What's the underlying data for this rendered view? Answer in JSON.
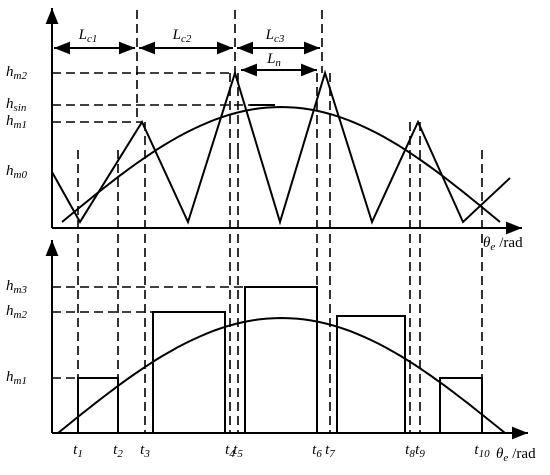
{
  "top_panel": {
    "dimensions": [
      {
        "main": "L",
        "sub": "c1"
      },
      {
        "main": "L",
        "sub": "c2"
      },
      {
        "main": "L",
        "sub": "c3"
      },
      {
        "main": "L",
        "sub": "n"
      }
    ],
    "y_labels": [
      {
        "main": "h",
        "sub": "m2"
      },
      {
        "main": "h",
        "sub": "sin"
      },
      {
        "main": "h",
        "sub": "m1"
      },
      {
        "main": "h",
        "sub": "m0"
      }
    ],
    "axis_label": {
      "main": "θ",
      "sub": "e",
      "unit": "/rad"
    }
  },
  "bottom_panel": {
    "y_labels": [
      {
        "main": "h",
        "sub": "m3"
      },
      {
        "main": "h",
        "sub": "m2"
      },
      {
        "main": "h",
        "sub": "m1"
      }
    ],
    "t_labels": [
      {
        "main": "t",
        "sub": "1"
      },
      {
        "main": "t",
        "sub": "2"
      },
      {
        "main": "t",
        "sub": "3"
      },
      {
        "main": "t",
        "sub": "4"
      },
      {
        "main": "t",
        "sub": "5"
      },
      {
        "main": "t",
        "sub": "6"
      },
      {
        "main": "t",
        "sub": "7"
      },
      {
        "main": "t",
        "sub": "8"
      },
      {
        "main": "t",
        "sub": "9"
      },
      {
        "main": "t",
        "sub": "10"
      }
    ],
    "axis_label": {
      "main": "θ",
      "sub": "e",
      "unit": "/rad"
    }
  }
}
